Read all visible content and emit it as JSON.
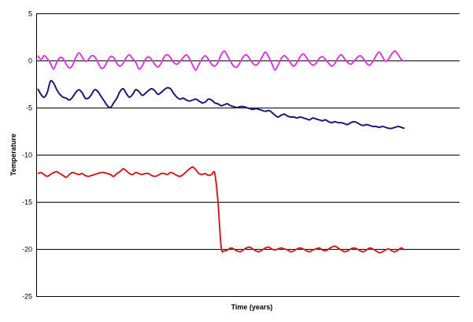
{
  "chart_data": {
    "type": "line",
    "xlabel": "Time (years)",
    "ylabel": "Temperature",
    "ylim": [
      -25,
      5
    ],
    "yticks": [
      5,
      0,
      -5,
      -10,
      -15,
      -20,
      -25
    ],
    "grid": true,
    "legend": "none",
    "x_tick_labels": "none",
    "series": [
      {
        "color": "#d93ad9",
        "values": [
          0.5,
          0.1,
          0.5,
          0.2,
          -0.3,
          -0.9,
          -0.2,
          0.3,
          0.2,
          -0.4,
          -0.8,
          -0.5,
          0.3,
          0.8,
          0.4,
          -0.1,
          0.1,
          0.5,
          0.4,
          -0.2,
          -0.8,
          -0.7,
          -0.1,
          0.4,
          0.3,
          -0.3,
          -0.6,
          -0.3,
          0.3,
          0.6,
          0.2,
          -0.2,
          -0.9,
          -0.6,
          0.1,
          0.4,
          0.1,
          -0.4,
          -0.7,
          -0.3,
          0.4,
          0.6,
          0.3,
          -0.2,
          -0.4,
          -0.1,
          0.3,
          0.6,
          0.2,
          -0.5,
          -1.0,
          -0.4,
          0.2,
          0.5,
          0.1,
          -0.4,
          -0.6,
          -0.2,
          0.6,
          1.0,
          0.5,
          -0.1,
          -0.6,
          -0.7,
          -0.2,
          0.4,
          0.6,
          0.2,
          -0.3,
          -0.5,
          -0.2,
          0.4,
          0.9,
          0.4,
          -0.3,
          -1.0,
          -0.5,
          0.2,
          0.5,
          0.2,
          -0.3,
          -0.6,
          -0.2,
          0.4,
          0.7,
          0.3,
          -0.2,
          -0.5,
          -0.3,
          0.2,
          0.4,
          0.1,
          -0.3,
          -0.6,
          -0.3,
          0.3,
          0.6,
          0.2,
          -0.2,
          -0.4,
          -0.1,
          0.3,
          0.5,
          0.2,
          -0.3,
          -0.5,
          -0.1,
          0.5,
          0.9,
          0.4,
          -0.1,
          0.2,
          0.7,
          1.0,
          0.6,
          0.1,
          -0.1
        ]
      },
      {
        "color": "#1a1a6e",
        "values": [
          -3.0,
          -3.6,
          -3.9,
          -3.4,
          -2.2,
          -2.4,
          -3.1,
          -3.6,
          -3.9,
          -4.0,
          -4.2,
          -3.9,
          -3.4,
          -3.1,
          -3.4,
          -4.0,
          -4.0,
          -3.6,
          -3.1,
          -3.3,
          -3.8,
          -4.3,
          -4.8,
          -5.0,
          -4.5,
          -4.0,
          -3.3,
          -3.0,
          -3.5,
          -3.9,
          -3.6,
          -3.1,
          -3.3,
          -3.7,
          -3.5,
          -3.2,
          -3.0,
          -3.2,
          -3.6,
          -3.4,
          -3.1,
          -2.9,
          -3.0,
          -3.5,
          -3.9,
          -4.1,
          -4.0,
          -4.2,
          -4.3,
          -4.2,
          -4.1,
          -4.3,
          -4.5,
          -4.4,
          -4.1,
          -4.2,
          -4.5,
          -4.6,
          -4.8,
          -4.7,
          -4.6,
          -4.8,
          -4.9,
          -5.0,
          -4.9,
          -4.9,
          -5.0,
          -5.1,
          -5.2,
          -5.1,
          -5.2,
          -5.3,
          -5.4,
          -5.3,
          -5.5,
          -5.8,
          -6.0,
          -5.8,
          -5.7,
          -5.9,
          -6.0,
          -6.0,
          -6.1,
          -6.0,
          -6.1,
          -6.2,
          -6.3,
          -6.1,
          -6.2,
          -6.3,
          -6.4,
          -6.3,
          -6.5,
          -6.6,
          -6.5,
          -6.6,
          -6.6,
          -6.7,
          -6.8,
          -6.6,
          -6.5,
          -6.6,
          -6.8,
          -6.9,
          -6.8,
          -6.9,
          -7.0,
          -7.0,
          -7.1,
          -7.0,
          -7.1,
          -7.2,
          -7.2,
          -7.1,
          -7.0,
          -7.1,
          -7.2
        ]
      },
      {
        "color": "#cc2222",
        "values": [
          -12.0,
          -11.9,
          -12.1,
          -12.3,
          -12.1,
          -11.9,
          -11.8,
          -12.0,
          -12.2,
          -12.4,
          -12.1,
          -11.9,
          -12.0,
          -12.1,
          -12.0,
          -12.2,
          -12.3,
          -12.2,
          -12.1,
          -12.0,
          -11.9,
          -11.9,
          -12.0,
          -12.1,
          -12.3,
          -12.0,
          -11.8,
          -11.5,
          -11.7,
          -12.0,
          -12.1,
          -11.9,
          -12.0,
          -12.1,
          -12.0,
          -12.0,
          -12.2,
          -12.3,
          -12.2,
          -12.0,
          -12.0,
          -12.1,
          -11.9,
          -12.0,
          -12.2,
          -12.3,
          -12.1,
          -11.8,
          -11.5,
          -11.3,
          -11.6,
          -12.0,
          -12.1,
          -12.0,
          -12.2,
          -12.1,
          -12.0,
          -15.0,
          -19.8,
          -20.2,
          -20.1,
          -19.9,
          -20.0,
          -20.2,
          -20.3,
          -20.1,
          -19.9,
          -19.8,
          -20.0,
          -20.2,
          -20.3,
          -20.1,
          -19.9,
          -19.8,
          -20.0,
          -20.1,
          -20.0,
          -19.9,
          -20.0,
          -20.1,
          -20.3,
          -20.2,
          -20.0,
          -19.9,
          -20.0,
          -20.2,
          -20.3,
          -20.1,
          -20.0,
          -19.9,
          -20.1,
          -20.2,
          -20.0,
          -19.8,
          -19.7,
          -19.9,
          -20.1,
          -20.3,
          -20.2,
          -20.0,
          -19.9,
          -20.0,
          -20.2,
          -20.3,
          -20.1,
          -19.9,
          -20.0,
          -20.2,
          -20.4,
          -20.3,
          -20.1,
          -20.0,
          -20.2,
          -20.3,
          -20.1,
          -19.9,
          -20.1
        ]
      }
    ]
  }
}
